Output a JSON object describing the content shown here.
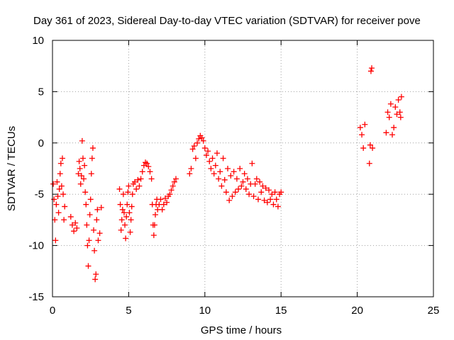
{
  "chart_data": {
    "type": "scatter",
    "title": "Day 361 of 2023, Sidereal Day-to-day VTEC variation (SDTVAR) for receiver pove",
    "xlabel": "GPS time / hours",
    "ylabel": "SDTVAR / TECUs",
    "xlim": [
      0,
      25
    ],
    "ylim": [
      -15,
      10
    ],
    "xticks": [
      0,
      5,
      10,
      15,
      20,
      25
    ],
    "yticks": [
      -15,
      -10,
      -5,
      0,
      5,
      10
    ],
    "grid": true,
    "marker": "+",
    "color": "#ff0000",
    "series": [
      {
        "name": "SDTVAR",
        "points": [
          [
            0.05,
            -4.0
          ],
          [
            0.1,
            -5.5
          ],
          [
            0.15,
            -7.5
          ],
          [
            0.2,
            -9.5
          ],
          [
            0.25,
            -6.0
          ],
          [
            0.3,
            -3.8
          ],
          [
            0.35,
            -5.2
          ],
          [
            0.4,
            -6.8
          ],
          [
            0.45,
            -4.5
          ],
          [
            0.5,
            -3.0
          ],
          [
            0.55,
            -2.0
          ],
          [
            0.6,
            -4.2
          ],
          [
            0.65,
            -1.5
          ],
          [
            0.7,
            -5.0
          ],
          [
            0.75,
            -7.5
          ],
          [
            0.8,
            -6.2
          ],
          [
            1.2,
            -7.2
          ],
          [
            1.3,
            -8.0
          ],
          [
            1.4,
            -8.6
          ],
          [
            1.5,
            -7.8
          ],
          [
            1.6,
            -8.3
          ],
          [
            1.7,
            -3.0
          ],
          [
            1.75,
            -1.8
          ],
          [
            1.8,
            -2.5
          ],
          [
            1.85,
            -4.0
          ],
          [
            1.9,
            -3.2
          ],
          [
            1.95,
            0.2
          ],
          [
            2.0,
            -1.5
          ],
          [
            2.05,
            -3.5
          ],
          [
            2.1,
            -2.2
          ],
          [
            2.15,
            -4.8
          ],
          [
            2.2,
            -6.0
          ],
          [
            2.25,
            -8.0
          ],
          [
            2.3,
            -10.0
          ],
          [
            2.35,
            -12.0
          ],
          [
            2.4,
            -9.5
          ],
          [
            2.45,
            -7.0
          ],
          [
            2.5,
            -5.5
          ],
          [
            2.55,
            -3.0
          ],
          [
            2.6,
            -1.5
          ],
          [
            2.65,
            -0.5
          ],
          [
            2.7,
            -8.5
          ],
          [
            2.75,
            -10.5
          ],
          [
            2.8,
            -13.3
          ],
          [
            2.85,
            -12.8
          ],
          [
            2.9,
            -7.5
          ],
          [
            2.95,
            -6.5
          ],
          [
            3.0,
            -9.5
          ],
          [
            3.1,
            -8.8
          ],
          [
            3.2,
            -6.3
          ],
          [
            4.4,
            -4.5
          ],
          [
            4.45,
            -6.0
          ],
          [
            4.5,
            -8.5
          ],
          [
            4.55,
            -7.5
          ],
          [
            4.6,
            -6.5
          ],
          [
            4.65,
            -5.0
          ],
          [
            4.7,
            -6.8
          ],
          [
            4.75,
            -8.0
          ],
          [
            4.8,
            -9.3
          ],
          [
            4.85,
            -7.2
          ],
          [
            4.9,
            -6.0
          ],
          [
            4.95,
            -4.8
          ],
          [
            5.0,
            -4.2
          ],
          [
            5.05,
            -6.8
          ],
          [
            5.1,
            -8.7
          ],
          [
            5.15,
            -7.5
          ],
          [
            5.2,
            -6.2
          ],
          [
            5.25,
            -5.0
          ],
          [
            5.3,
            -4.0
          ],
          [
            5.4,
            -3.8
          ],
          [
            5.5,
            -4.5
          ],
          [
            5.6,
            -3.6
          ],
          [
            5.7,
            -4.2
          ],
          [
            5.8,
            -3.5
          ],
          [
            5.9,
            -2.8
          ],
          [
            6.0,
            -2.2
          ],
          [
            6.1,
            -1.9
          ],
          [
            6.2,
            -2.0
          ],
          [
            6.3,
            -2.3
          ],
          [
            6.4,
            -2.8
          ],
          [
            6.5,
            -3.5
          ],
          [
            6.55,
            -6.0
          ],
          [
            6.6,
            -8.0
          ],
          [
            6.65,
            -9.0
          ],
          [
            6.7,
            -8.0
          ],
          [
            6.75,
            -7.0
          ],
          [
            6.8,
            -6.0
          ],
          [
            6.85,
            -5.5
          ],
          [
            6.9,
            -6.5
          ],
          [
            7.0,
            -6.0
          ],
          [
            7.1,
            -5.5
          ],
          [
            7.2,
            -6.5
          ],
          [
            7.3,
            -6.0
          ],
          [
            7.4,
            -5.4
          ],
          [
            7.5,
            -5.8
          ],
          [
            7.6,
            -5.2
          ],
          [
            7.7,
            -5.0
          ],
          [
            7.8,
            -4.6
          ],
          [
            7.9,
            -4.2
          ],
          [
            8.0,
            -3.8
          ],
          [
            8.1,
            -3.5
          ],
          [
            9.0,
            -3.0
          ],
          [
            9.1,
            -2.5
          ],
          [
            9.2,
            -0.6
          ],
          [
            9.3,
            -0.3
          ],
          [
            9.4,
            -1.5
          ],
          [
            9.5,
            0.0
          ],
          [
            9.6,
            0.4
          ],
          [
            9.7,
            0.7
          ],
          [
            9.8,
            0.5
          ],
          [
            9.9,
            0.2
          ],
          [
            10.0,
            -0.5
          ],
          [
            10.1,
            -1.2
          ],
          [
            10.2,
            -0.8
          ],
          [
            10.3,
            -1.8
          ],
          [
            10.4,
            -2.5
          ],
          [
            10.5,
            -1.5
          ],
          [
            10.6,
            -3.0
          ],
          [
            10.7,
            -2.2
          ],
          [
            10.8,
            -1.0
          ],
          [
            10.9,
            -3.5
          ],
          [
            11.0,
            -2.8
          ],
          [
            11.1,
            -4.2
          ],
          [
            11.2,
            -1.5
          ],
          [
            11.3,
            -3.6
          ],
          [
            11.4,
            -4.8
          ],
          [
            11.5,
            -2.5
          ],
          [
            11.6,
            -5.6
          ],
          [
            11.7,
            -3.2
          ],
          [
            11.8,
            -5.2
          ],
          [
            11.9,
            -2.8
          ],
          [
            12.0,
            -4.8
          ],
          [
            12.1,
            -3.5
          ],
          [
            12.2,
            -4.5
          ],
          [
            12.3,
            -2.5
          ],
          [
            12.4,
            -4.2
          ],
          [
            12.5,
            -3.8
          ],
          [
            12.6,
            -3.0
          ],
          [
            12.7,
            -4.5
          ],
          [
            12.8,
            -3.5
          ],
          [
            12.9,
            -5.0
          ],
          [
            13.0,
            -4.0
          ],
          [
            13.1,
            -2.0
          ],
          [
            13.2,
            -5.2
          ],
          [
            13.3,
            -4.0
          ],
          [
            13.4,
            -3.5
          ],
          [
            13.5,
            -5.5
          ],
          [
            13.6,
            -3.8
          ],
          [
            13.7,
            -4.8
          ],
          [
            13.8,
            -4.2
          ],
          [
            13.9,
            -5.6
          ],
          [
            14.0,
            -4.4
          ],
          [
            14.1,
            -5.8
          ],
          [
            14.2,
            -4.6
          ],
          [
            14.3,
            -5.5
          ],
          [
            14.4,
            -5.0
          ],
          [
            14.5,
            -6.0
          ],
          [
            14.6,
            -4.8
          ],
          [
            14.7,
            -5.5
          ],
          [
            14.8,
            -6.2
          ],
          [
            14.9,
            -5.0
          ],
          [
            15.0,
            -4.8
          ],
          [
            20.2,
            1.5
          ],
          [
            20.3,
            0.8
          ],
          [
            20.4,
            -0.5
          ],
          [
            20.5,
            1.8
          ],
          [
            20.8,
            -2.0
          ],
          [
            20.85,
            -0.2
          ],
          [
            20.9,
            7.0
          ],
          [
            20.95,
            7.3
          ],
          [
            21.0,
            -0.5
          ],
          [
            21.9,
            1.0
          ],
          [
            22.0,
            3.0
          ],
          [
            22.1,
            2.5
          ],
          [
            22.2,
            3.8
          ],
          [
            22.3,
            0.8
          ],
          [
            22.4,
            1.5
          ],
          [
            22.5,
            3.5
          ],
          [
            22.6,
            2.8
          ],
          [
            22.7,
            4.2
          ],
          [
            22.8,
            3.0
          ],
          [
            22.85,
            2.5
          ],
          [
            22.9,
            4.5
          ]
        ]
      }
    ]
  }
}
